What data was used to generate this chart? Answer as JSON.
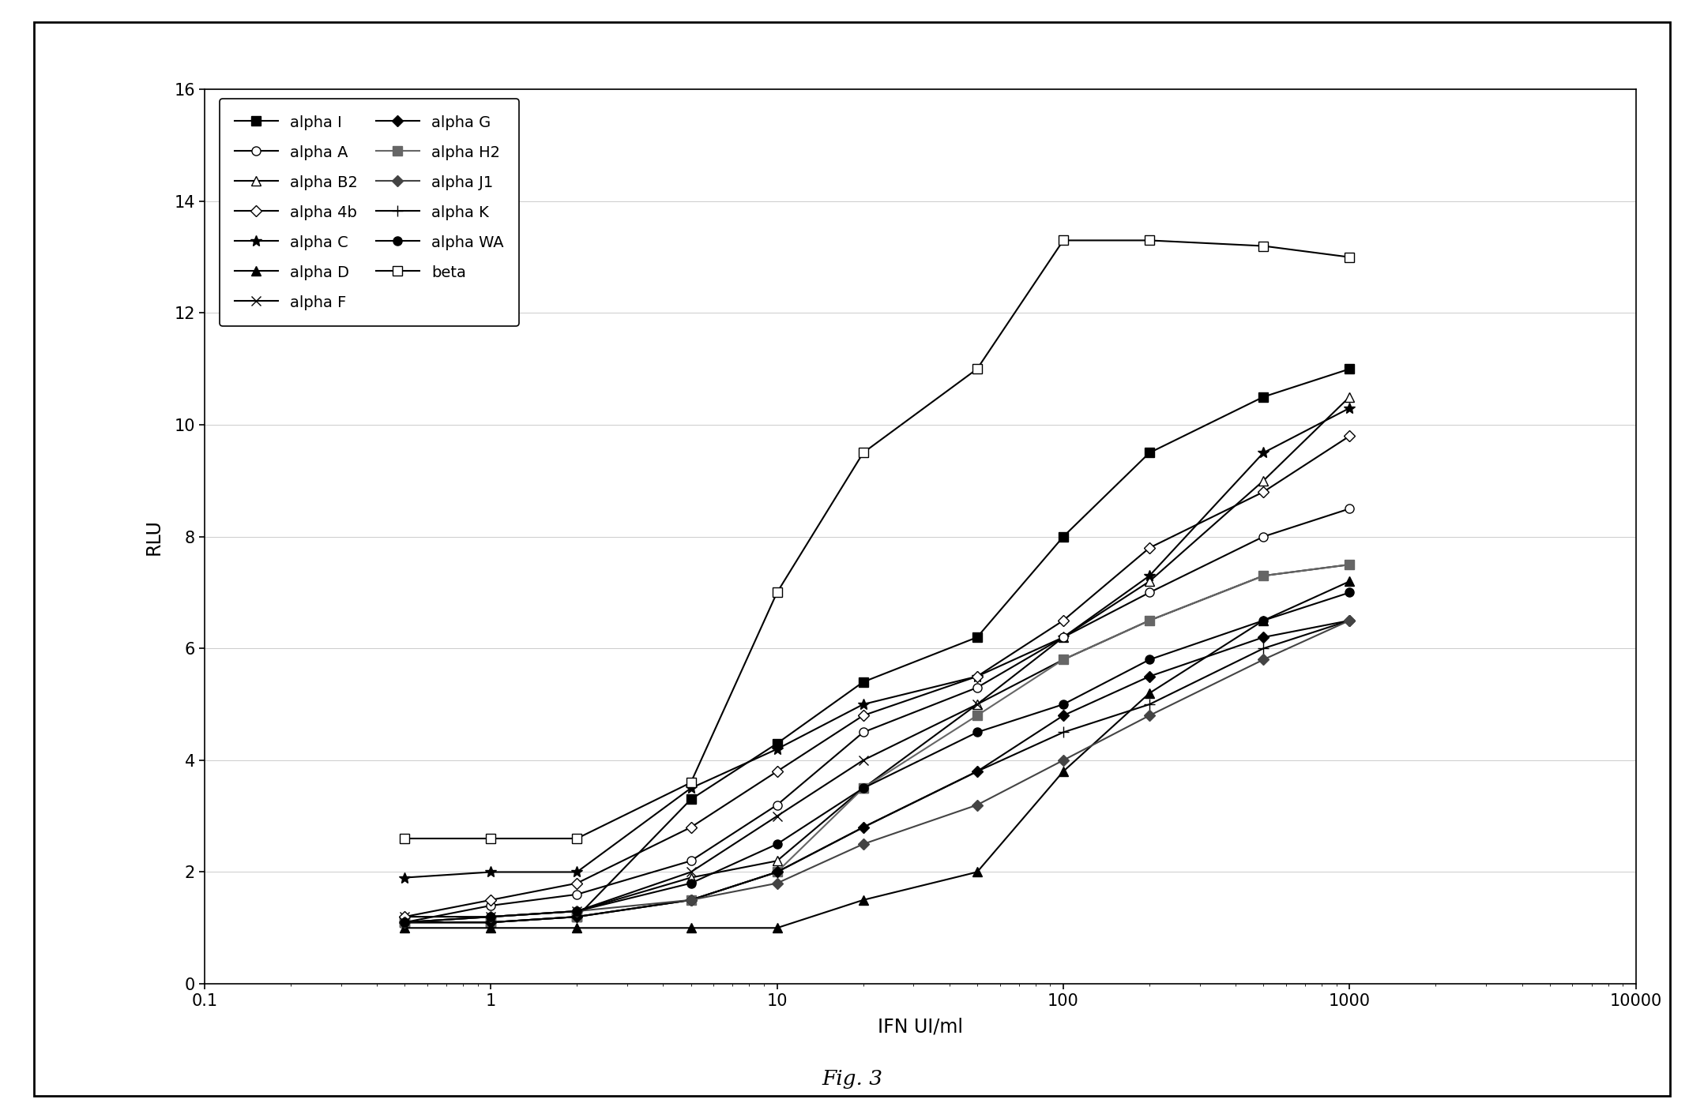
{
  "title": "Fig. 3",
  "xlabel": "IFN UI/ml",
  "ylabel": "RLU",
  "xlim": [
    0.1,
    10000
  ],
  "ylim": [
    0,
    16
  ],
  "yticks": [
    0,
    2,
    4,
    6,
    8,
    10,
    12,
    14,
    16
  ],
  "background_color": "#ffffff",
  "outer_border_color": "#000000",
  "series": [
    {
      "label": "alpha I",
      "marker": "s",
      "filled": true,
      "color": "#000000",
      "markersize": 8,
      "linewidth": 1.5,
      "x": [
        0.5,
        1.0,
        2.0,
        5.0,
        10.0,
        20.0,
        50.0,
        100.0,
        200.0,
        500.0,
        1000.0
      ],
      "y": [
        1.1,
        1.1,
        1.2,
        3.3,
        4.3,
        5.4,
        6.2,
        8.0,
        9.5,
        10.5,
        11.0
      ]
    },
    {
      "label": "alpha B2",
      "marker": "^",
      "filled": false,
      "color": "#000000",
      "markersize": 8,
      "linewidth": 1.5,
      "x": [
        0.5,
        1.0,
        2.0,
        5.0,
        10.0,
        20.0,
        50.0,
        100.0,
        200.0,
        500.0,
        1000.0
      ],
      "y": [
        1.1,
        1.2,
        1.3,
        1.9,
        2.2,
        3.5,
        5.0,
        6.2,
        7.2,
        9.0,
        10.5
      ]
    },
    {
      "label": "alpha C",
      "marker": "*",
      "filled": true,
      "color": "#000000",
      "markersize": 10,
      "linewidth": 1.5,
      "x": [
        0.5,
        1.0,
        2.0,
        5.0,
        10.0,
        20.0,
        50.0,
        100.0,
        200.0,
        500.0,
        1000.0
      ],
      "y": [
        1.9,
        2.0,
        2.0,
        3.5,
        4.2,
        5.0,
        5.5,
        6.2,
        7.3,
        9.5,
        10.3
      ]
    },
    {
      "label": "alpha F",
      "marker": "x",
      "filled": true,
      "color": "#000000",
      "markersize": 8,
      "linewidth": 1.5,
      "x": [
        0.5,
        1.0,
        2.0,
        5.0,
        10.0,
        20.0,
        50.0,
        100.0,
        200.0,
        500.0,
        1000.0
      ],
      "y": [
        1.2,
        1.2,
        1.3,
        2.0,
        3.0,
        4.0,
        5.0,
        5.8,
        6.5,
        7.3,
        7.5
      ]
    },
    {
      "label": "alpha H2",
      "marker": "s",
      "filled": true,
      "color": "#666666",
      "markersize": 8,
      "linewidth": 1.5,
      "x": [
        0.5,
        1.0,
        2.0,
        5.0,
        10.0,
        20.0,
        50.0,
        100.0,
        200.0,
        500.0,
        1000.0
      ],
      "y": [
        1.1,
        1.1,
        1.2,
        1.5,
        2.0,
        3.5,
        4.8,
        5.8,
        6.5,
        7.3,
        7.5
      ]
    },
    {
      "label": "alpha K",
      "marker": "+",
      "filled": true,
      "color": "#000000",
      "markersize": 10,
      "linewidth": 1.5,
      "x": [
        0.5,
        1.0,
        2.0,
        5.0,
        10.0,
        20.0,
        50.0,
        100.0,
        200.0,
        500.0,
        1000.0
      ],
      "y": [
        1.1,
        1.1,
        1.2,
        1.5,
        2.0,
        2.8,
        3.8,
        4.5,
        5.0,
        6.0,
        6.5
      ]
    },
    {
      "label": "beta",
      "marker": "s",
      "filled": false,
      "color": "#000000",
      "markersize": 8,
      "linewidth": 1.5,
      "x": [
        0.5,
        1.0,
        2.0,
        5.0,
        10.0,
        20.0,
        50.0,
        100.0,
        200.0,
        500.0,
        1000.0
      ],
      "y": [
        2.6,
        2.6,
        2.6,
        3.6,
        7.0,
        9.5,
        11.0,
        13.3,
        13.3,
        13.2,
        13.0
      ]
    },
    {
      "label": "alpha A",
      "marker": "o",
      "filled": false,
      "color": "#000000",
      "markersize": 8,
      "linewidth": 1.5,
      "x": [
        0.5,
        1.0,
        2.0,
        5.0,
        10.0,
        20.0,
        50.0,
        100.0,
        200.0,
        500.0,
        1000.0
      ],
      "y": [
        1.1,
        1.4,
        1.6,
        2.2,
        3.2,
        4.5,
        5.3,
        6.2,
        7.0,
        8.0,
        8.5
      ]
    },
    {
      "label": "alpha 4b",
      "marker": "D",
      "filled": false,
      "color": "#000000",
      "markersize": 7,
      "linewidth": 1.5,
      "x": [
        0.5,
        1.0,
        2.0,
        5.0,
        10.0,
        20.0,
        50.0,
        100.0,
        200.0,
        500.0,
        1000.0
      ],
      "y": [
        1.2,
        1.5,
        1.8,
        2.8,
        3.8,
        4.8,
        5.5,
        6.5,
        7.8,
        8.8,
        9.8
      ]
    },
    {
      "label": "alpha D",
      "marker": "^",
      "filled": true,
      "color": "#000000",
      "markersize": 8,
      "linewidth": 1.5,
      "x": [
        0.5,
        1.0,
        2.0,
        5.0,
        10.0,
        20.0,
        50.0,
        100.0,
        200.0,
        500.0,
        1000.0
      ],
      "y": [
        1.0,
        1.0,
        1.0,
        1.0,
        1.0,
        1.5,
        2.0,
        3.8,
        5.2,
        6.5,
        7.2
      ]
    },
    {
      "label": "alpha G",
      "marker": "D",
      "filled": true,
      "color": "#000000",
      "markersize": 7,
      "linewidth": 1.5,
      "x": [
        0.5,
        1.0,
        2.0,
        5.0,
        10.0,
        20.0,
        50.0,
        100.0,
        200.0,
        500.0,
        1000.0
      ],
      "y": [
        1.1,
        1.1,
        1.2,
        1.5,
        2.0,
        2.8,
        3.8,
        4.8,
        5.5,
        6.2,
        6.5
      ]
    },
    {
      "label": "alpha J1",
      "marker": "D",
      "filled": true,
      "color": "#444444",
      "markersize": 7,
      "linewidth": 1.5,
      "x": [
        0.5,
        1.0,
        2.0,
        5.0,
        10.0,
        20.0,
        50.0,
        100.0,
        200.0,
        500.0,
        1000.0
      ],
      "y": [
        1.1,
        1.2,
        1.3,
        1.5,
        1.8,
        2.5,
        3.2,
        4.0,
        4.8,
        5.8,
        6.5
      ]
    },
    {
      "label": "alpha WA",
      "marker": "o",
      "filled": true,
      "color": "#000000",
      "markersize": 8,
      "linewidth": 1.5,
      "x": [
        0.5,
        1.0,
        2.0,
        5.0,
        10.0,
        20.0,
        50.0,
        100.0,
        200.0,
        500.0,
        1000.0
      ],
      "y": [
        1.1,
        1.2,
        1.3,
        1.8,
        2.5,
        3.5,
        4.5,
        5.0,
        5.8,
        6.5,
        7.0
      ]
    }
  ],
  "legend_left": [
    "alpha I",
    "alpha B2",
    "alpha C",
    "alpha F",
    "alpha H2",
    "alpha K",
    "beta"
  ],
  "legend_right": [
    "alpha A",
    "alpha 4b",
    "alpha D",
    "alpha G",
    "alpha J1",
    "alpha WA"
  ]
}
